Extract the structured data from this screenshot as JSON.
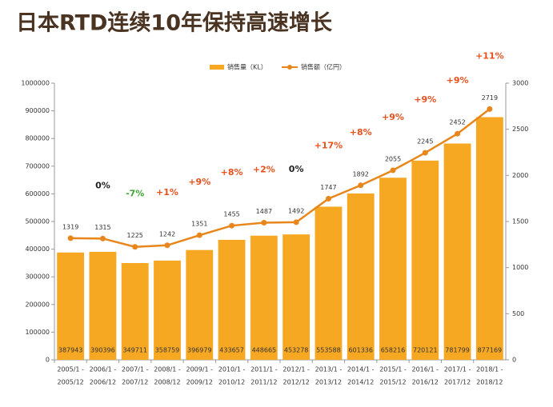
{
  "chart_data": {
    "type": "bar-line",
    "title": "日本RTD连续10年保持高速增长",
    "categories": [
      [
        "2005/1 -",
        "2005/12"
      ],
      [
        "2006/1 -",
        "2006/12"
      ],
      [
        "2007/1 -",
        "2007/12"
      ],
      [
        "2008/1 -",
        "2008/12"
      ],
      [
        "2009/1 -",
        "2009/12"
      ],
      [
        "2010/1 -",
        "2010/12"
      ],
      [
        "2011/1 -",
        "2011/12"
      ],
      [
        "2012/1 -",
        "2012/12"
      ],
      [
        "2013/1 -",
        "2013/12"
      ],
      [
        "2014/1 -",
        "2014/12"
      ],
      [
        "2015/1 -",
        "2015/12"
      ],
      [
        "2016/1 -",
        "2016/12"
      ],
      [
        "2017/1 -",
        "2017/12"
      ],
      [
        "2018/1 -",
        "2018/12"
      ]
    ],
    "series": [
      {
        "name": "销售量（KL）",
        "type": "bar",
        "color": "#f7a823",
        "values": [
          387943,
          390396,
          349711,
          358759,
          396979,
          433657,
          448665,
          453278,
          553588,
          601336,
          658216,
          720121,
          781799,
          877169
        ]
      },
      {
        "name": "销售额（亿円）",
        "type": "line",
        "axis": "y2",
        "color": "#e8861c",
        "values": [
          1319,
          1315,
          1225,
          1242,
          1351,
          1455,
          1487,
          1492,
          1747,
          1892,
          2055,
          2245,
          2452,
          2719
        ]
      }
    ],
    "annotations": [
      null,
      "0%",
      "-7%",
      "+1%",
      "+9%",
      "+8%",
      "+2%",
      "0%",
      "+17%",
      "+8%",
      "+9%",
      "+9%",
      "+9%",
      "+11%"
    ],
    "annotation_colors": [
      null,
      "#222222",
      "#3fa535",
      "#e8501c",
      "#e8501c",
      "#e8501c",
      "#e8501c",
      "#222222",
      "#e8501c",
      "#e8501c",
      "#e8501c",
      "#e8501c",
      "#e8501c",
      "#e8501c"
    ],
    "ylim": [
      0,
      1000000
    ],
    "yticks": [
      0,
      100000,
      200000,
      300000,
      400000,
      500000,
      600000,
      700000,
      800000,
      900000,
      1000000
    ],
    "y2lim": [
      0,
      3000
    ],
    "y2ticks": [
      0,
      500,
      1000,
      1500,
      2000,
      2500,
      3000
    ],
    "legend": "top",
    "grid": false
  }
}
